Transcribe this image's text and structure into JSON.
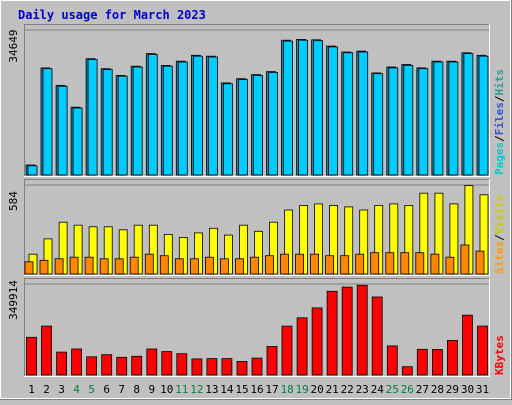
{
  "chart_data": [
    {
      "type": "bar",
      "title": "Daily usage for March 2023",
      "panel": "top",
      "ymax_label": "34649",
      "ylim": [
        0,
        34649
      ],
      "categories": [
        "1",
        "2",
        "3",
        "4",
        "5",
        "6",
        "7",
        "8",
        "9",
        "10",
        "11",
        "12",
        "13",
        "14",
        "15",
        "16",
        "17",
        "18",
        "19",
        "20",
        "21",
        "22",
        "23",
        "24",
        "25",
        "26",
        "27",
        "28",
        "29",
        "30",
        "31"
      ],
      "weekend_days": [
        "4",
        "5",
        "11",
        "12",
        "18",
        "19",
        "25",
        "26"
      ],
      "side_legend": [
        {
          "text": "Hits",
          "color": "#339999"
        },
        {
          "text": "/",
          "color": "#000000"
        },
        {
          "text": "Files",
          "color": "#3355cc"
        },
        {
          "text": "/",
          "color": "#000000"
        },
        {
          "text": "Pages",
          "color": "#00cccc"
        }
      ],
      "series": [
        {
          "name": "Hits",
          "color": "#0090c0",
          "values": [
            2400,
            25600,
            21400,
            16200,
            27800,
            25400,
            23800,
            26000,
            29000,
            26200,
            27200,
            28600,
            28400,
            22000,
            23000,
            24000,
            24700,
            32200,
            32400,
            32300,
            30800,
            29400,
            29600,
            24400,
            25800,
            26400,
            25600,
            27200,
            27200,
            29200,
            28600
          ]
        },
        {
          "name": "Files",
          "color": "#00ccff",
          "values": [
            2200,
            25400,
            21200,
            16000,
            27600,
            25200,
            23600,
            25800,
            28800,
            26000,
            27000,
            28400,
            28200,
            21800,
            22800,
            23800,
            24500,
            32000,
            32200,
            32100,
            30600,
            29200,
            29400,
            24200,
            25600,
            26200,
            25400,
            27000,
            27000,
            29000,
            28400
          ]
        }
      ]
    },
    {
      "type": "bar",
      "panel": "middle",
      "ymax_label": "584",
      "ylim": [
        0,
        584
      ],
      "side_legend": [
        {
          "text": "Visits",
          "color": "#cccc00"
        },
        {
          "text": "/",
          "color": "#000000"
        },
        {
          "text": "Sites",
          "color": "#ff9900"
        }
      ],
      "series": [
        {
          "name": "Visits",
          "color": "#ffff00",
          "values": [
            130,
            230,
            340,
            320,
            310,
            310,
            290,
            320,
            320,
            260,
            240,
            270,
            300,
            255,
            320,
            280,
            340,
            420,
            450,
            460,
            450,
            440,
            420,
            450,
            460,
            450,
            530,
            530,
            460,
            580,
            520
          ]
        },
        {
          "name": "Sites",
          "color": "#ff8800",
          "values": [
            80,
            90,
            100,
            110,
            110,
            100,
            100,
            110,
            130,
            120,
            100,
            100,
            110,
            100,
            100,
            110,
            120,
            130,
            130,
            130,
            120,
            120,
            130,
            140,
            140,
            140,
            140,
            130,
            110,
            190,
            150
          ]
        }
      ]
    },
    {
      "type": "bar",
      "panel": "bottom",
      "ymax_label": "349914",
      "ylim": [
        0,
        349914
      ],
      "side_legend": [
        {
          "text": "KBytes",
          "color": "#ff0000"
        }
      ],
      "series": [
        {
          "name": "KBytes",
          "color": "#ff0000",
          "values": [
            145000,
            188000,
            88000,
            100000,
            70000,
            78000,
            68000,
            72000,
            100000,
            90000,
            82000,
            62000,
            63000,
            63000,
            52000,
            65000,
            110000,
            188000,
            220000,
            258000,
            322000,
            338000,
            345000,
            300000,
            112000,
            32000,
            99000,
            98000,
            133000,
            230000,
            188000
          ]
        }
      ]
    }
  ]
}
